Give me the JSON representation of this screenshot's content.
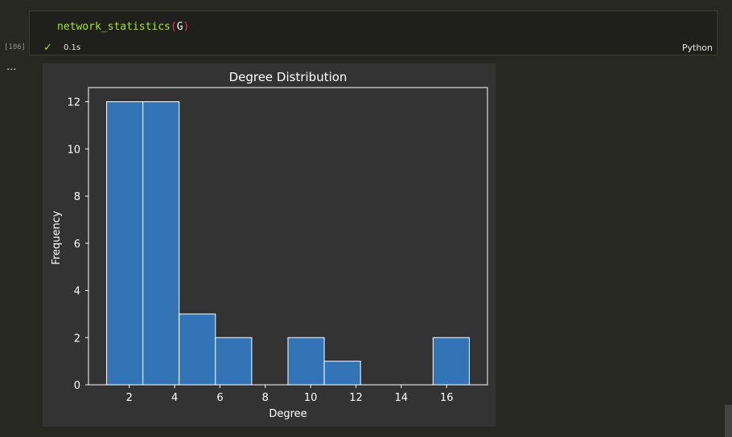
{
  "cell": {
    "code_fn": "network_statistics",
    "code_open": "(",
    "code_arg": "G",
    "code_close": ")",
    "exec_count": "[106]",
    "status_icon": "check-icon",
    "exec_time": "0.1s",
    "language": "Python"
  },
  "output": {
    "ellipsis": "..."
  },
  "chart_data": {
    "type": "bar",
    "title": "Degree Distribution",
    "xlabel": "Degree",
    "ylabel": "Frequency",
    "bins": [
      {
        "start": 1.0,
        "end": 2.6,
        "count": 12
      },
      {
        "start": 2.6,
        "end": 4.2,
        "count": 12
      },
      {
        "start": 4.2,
        "end": 5.8,
        "count": 3
      },
      {
        "start": 5.8,
        "end": 7.4,
        "count": 2
      },
      {
        "start": 7.4,
        "end": 9.0,
        "count": 0
      },
      {
        "start": 9.0,
        "end": 10.6,
        "count": 2
      },
      {
        "start": 10.6,
        "end": 12.2,
        "count": 1
      },
      {
        "start": 12.2,
        "end": 13.8,
        "count": 0
      },
      {
        "start": 13.8,
        "end": 15.4,
        "count": 0
      },
      {
        "start": 15.4,
        "end": 17.0,
        "count": 2
      }
    ],
    "xticks": [
      "2",
      "4",
      "6",
      "8",
      "10",
      "12",
      "14",
      "16"
    ],
    "yticks": [
      "0",
      "2",
      "4",
      "6",
      "8",
      "10",
      "12"
    ],
    "xlim": [
      0.2,
      17.8
    ],
    "ylim": [
      0,
      12.6
    ],
    "bar_color": "#3274b5",
    "edge_color": "#ffffff"
  }
}
